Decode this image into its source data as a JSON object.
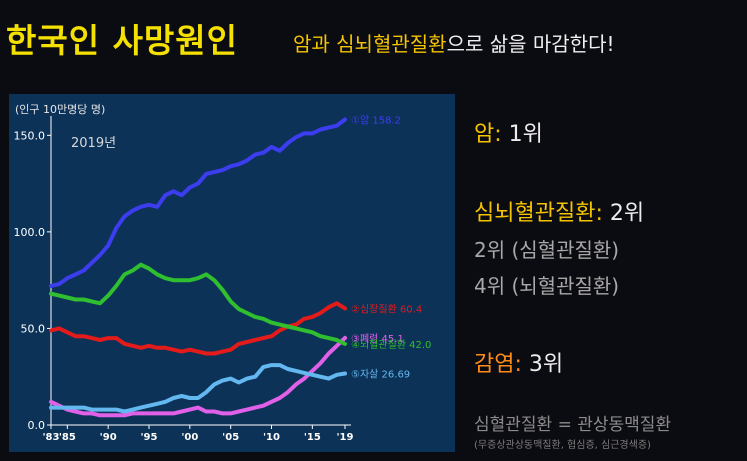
{
  "header": {
    "title": "한국인 사망원인",
    "subtitle_highlight": "암과 심뇌혈관질환",
    "subtitle_rest": "으로 삶을 마감한다!"
  },
  "right_panel": {
    "cancer_label": "암",
    "cancer_rank": "1위",
    "cv_label": "심뇌혈관질환",
    "cv_rank": "2위",
    "heart_rank_text": "2위 (심혈관질환)",
    "brain_rank_text": "4위 (뇌혈관질환)",
    "pneumonia_label": "감염",
    "pneumonia_rank": "3위",
    "equation_text": "심혈관질환 = 관상동맥질환",
    "equation_note": "(무증상관상동맥질환, 협심증, 심근경색증)"
  },
  "chart_data": {
    "type": "line",
    "ylabel": "(인구 10만명당 명)",
    "year_label": "2019년",
    "ylim": [
      0,
      160
    ],
    "xlim": [
      1983,
      2019
    ],
    "yticks": [
      0,
      50,
      100,
      150
    ],
    "ytick_labels": [
      "0.0",
      "50.0",
      "100.0",
      "150.0"
    ],
    "xtick_labels": [
      {
        "x": 1983,
        "label": "'83"
      },
      {
        "x": 1985,
        "label": "'85"
      },
      {
        "x": 1990,
        "label": "'90"
      },
      {
        "x": 1995,
        "label": "'95"
      },
      {
        "x": 2000,
        "label": "'00"
      },
      {
        "x": 2005,
        "label": "'05"
      },
      {
        "x": 2010,
        "label": "'10"
      },
      {
        "x": 2015,
        "label": "'15"
      },
      {
        "x": 2019,
        "label": "'19"
      }
    ],
    "x": [
      1983,
      1984,
      1985,
      1986,
      1987,
      1988,
      1989,
      1990,
      1991,
      1992,
      1993,
      1994,
      1995,
      1996,
      1997,
      1998,
      1999,
      2000,
      2001,
      2002,
      2003,
      2004,
      2005,
      2006,
      2007,
      2008,
      2009,
      2010,
      2011,
      2012,
      2013,
      2014,
      2015,
      2016,
      2017,
      2018,
      2019
    ],
    "series": [
      {
        "name": "①암",
        "end_label": "①암 158.2",
        "color": "#3d3df0",
        "values": [
          72,
          73,
          76,
          78,
          80,
          84,
          88,
          93,
          102,
          108,
          111,
          113,
          114,
          113,
          119,
          121,
          119,
          123,
          125,
          130,
          131,
          132,
          134,
          135,
          137,
          140,
          141,
          144,
          142,
          146,
          149,
          151,
          151,
          153,
          154,
          155,
          158.2
        ]
      },
      {
        "name": "②심장질환",
        "end_label": "②심장질환 60.4",
        "color": "#e41b1b",
        "values": [
          49,
          50,
          48,
          46,
          46,
          45,
          44,
          45,
          45,
          42,
          41,
          40,
          41,
          40,
          40,
          39,
          38,
          39,
          38,
          37,
          37,
          38,
          39,
          42,
          43,
          44,
          45,
          46,
          49,
          51,
          52,
          55,
          56,
          58,
          61,
          63,
          60.4
        ]
      },
      {
        "name": "③폐렴",
        "end_label": "③폐렴 45.1",
        "color": "#e060e8",
        "values": [
          12,
          10,
          8,
          7,
          6,
          6,
          5,
          5,
          5,
          5,
          6,
          6,
          6,
          6,
          6,
          6,
          7,
          8,
          9,
          7,
          7,
          6,
          6,
          7,
          8,
          9,
          10,
          12,
          14,
          17,
          21,
          24,
          28,
          32,
          37,
          41,
          45.1
        ]
      },
      {
        "name": "④뇌혈관질환",
        "end_label": "④뇌혈관질환 42.0",
        "color": "#2fbf2f",
        "values": [
          68,
          67,
          66,
          65,
          65,
          64,
          63,
          67,
          72,
          78,
          80,
          83,
          81,
          78,
          76,
          75,
          75,
          75,
          76,
          78,
          75,
          70,
          64,
          60,
          58,
          56,
          55,
          53,
          52,
          51,
          50,
          49,
          48,
          46,
          45,
          44,
          42.0
        ]
      },
      {
        "name": "⑤자살",
        "end_label": "⑤자살 26.69",
        "color": "#64b8f0",
        "values": [
          9,
          9,
          9,
          9,
          9,
          8,
          8,
          8,
          8,
          7,
          8,
          9,
          10,
          11,
          12,
          14,
          15,
          14,
          14,
          17,
          21,
          23,
          24,
          22,
          24,
          25,
          30,
          31,
          31,
          29,
          28,
          27,
          26,
          25,
          24,
          26,
          26.69
        ]
      }
    ]
  }
}
